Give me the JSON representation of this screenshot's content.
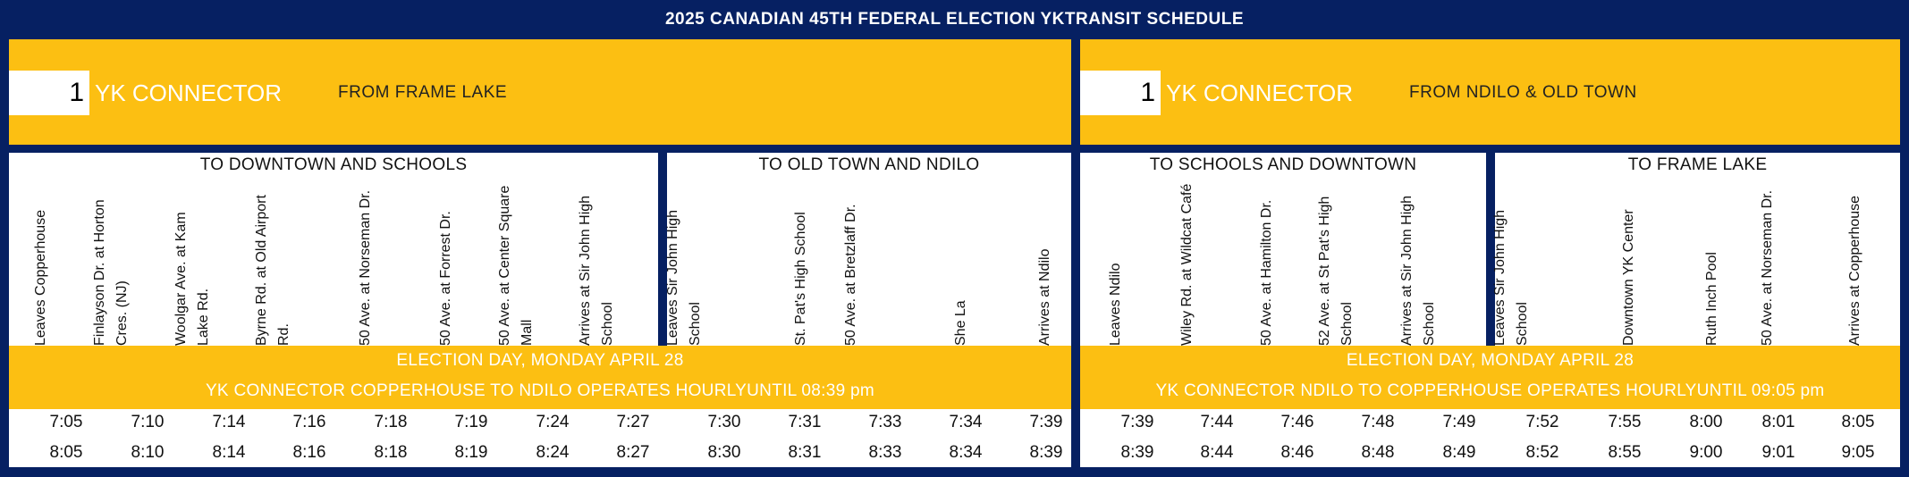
{
  "banner": {
    "title": "2025 CANADIAN 45TH FEDERAL ELECTION YKTRANSIT SCHEDULE"
  },
  "panels": [
    {
      "route_number": "1",
      "route_name": "YK CONNECTOR",
      "from_label": "FROM FRAME LAKE",
      "directions": [
        {
          "title": "TO DOWNTOWN AND SCHOOLS",
          "stops": [
            "Leaves Copperhouse",
            "Finlayson Dr. at Horton Cres. (NJ)",
            "Woolgar Ave. at Kam Lake Rd.",
            "Byrne Rd. at Old Airport Rd.",
            "50 Ave. at Norseman Dr.",
            "50 Ave. at Forrest Dr.",
            "50 Ave. at Center Square Mall",
            "Arrives at Sir John High School"
          ]
        },
        {
          "title": "TO OLD TOWN AND NDILO",
          "stops": [
            "Leaves Sir John High School",
            "St. Pat's High School",
            "50 Ave. at Bretzlaff Dr.",
            "She La",
            "Arrives at Ndilo"
          ]
        }
      ],
      "notice": {
        "line1": "ELECTION DAY, MONDAY APRIL 28",
        "line2": "YK CONNECTOR COPPERHOUSE TO NDILO OPERATES HOURLYUNTIL 08:39 pm"
      },
      "times": [
        [
          "7:05",
          "7:10",
          "7:14",
          "7:16",
          "7:18",
          "7:19",
          "7:24",
          "7:27",
          "7:30",
          "7:31",
          "7:33",
          "7:34",
          "7:39"
        ],
        [
          "8:05",
          "8:10",
          "8:14",
          "8:16",
          "8:18",
          "8:19",
          "8:24",
          "8:27",
          "8:30",
          "8:31",
          "8:33",
          "8:34",
          "8:39"
        ]
      ]
    },
    {
      "route_number": "1",
      "route_name": "YK CONNECTOR",
      "from_label": "FROM NDILO & OLD TOWN",
      "directions": [
        {
          "title": "TO SCHOOLS AND DOWNTOWN",
          "stops": [
            "Leaves Ndilo",
            "Wiley Rd. at Wildcat Café",
            "50 Ave. at Hamilton Dr.",
            "52 Ave. at St Pat's High School",
            "Arrives at Sir John High School"
          ]
        },
        {
          "title": "TO FRAME LAKE",
          "stops": [
            "Leaves Sir John High School",
            "Downtown YK Center",
            "Ruth Inch Pool",
            "50 Ave. at Norseman Dr.",
            "Arrives at Copperhouse"
          ]
        }
      ],
      "notice": {
        "line1": "ELECTION DAY, MONDAY APRIL 28",
        "line2": "YK CONNECTOR NDILO TO COPPERHOUSE OPERATES HOURLYUNTIL 09:05 pm"
      },
      "times": [
        [
          "7:39",
          "7:44",
          "7:46",
          "7:48",
          "7:49",
          "7:52",
          "7:55",
          "8:00",
          "8:01",
          "8:05"
        ],
        [
          "8:39",
          "8:44",
          "8:46",
          "8:48",
          "8:49",
          "8:52",
          "8:55",
          "9:00",
          "9:01",
          "9:05"
        ]
      ]
    }
  ],
  "colors": {
    "navy": "#062062",
    "gold": "#fcbf12",
    "white": "#ffffff"
  }
}
